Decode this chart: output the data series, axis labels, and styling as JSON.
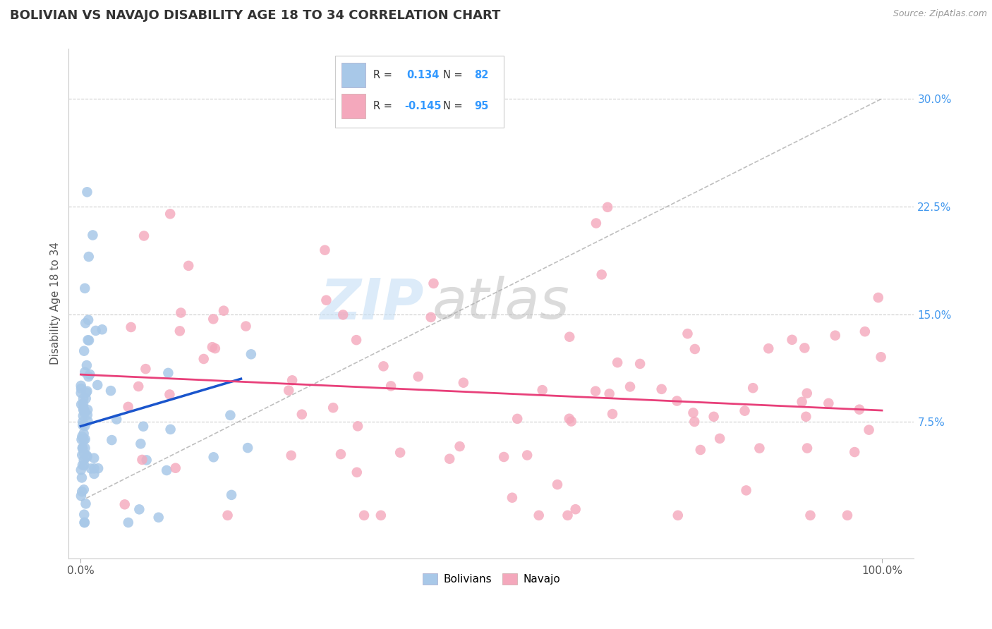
{
  "title": "BOLIVIAN VS NAVAJO DISABILITY AGE 18 TO 34 CORRELATION CHART",
  "source_text": "Source: ZipAtlas.com",
  "ylabel": "Disability Age 18 to 34",
  "bolivian_R": 0.134,
  "bolivian_N": 82,
  "navajo_R": -0.145,
  "navajo_N": 95,
  "bolivian_color": "#a8c8e8",
  "navajo_color": "#f4a8bc",
  "bolivian_line_color": "#1a55cc",
  "navajo_line_color": "#e8407a",
  "diagonal_line_color": "#aaaaaa",
  "grid_color": "#cccccc",
  "background_color": "#ffffff",
  "title_color": "#333333",
  "source_color": "#999999",
  "ylabel_color": "#555555",
  "ytick_color": "#4499ee",
  "xtick_color": "#555555",
  "legend_text_color": "#333333",
  "legend_value_color": "#3399ff",
  "xlim": [
    -0.015,
    1.04
  ],
  "ylim": [
    -0.02,
    0.335
  ],
  "yticks": [
    0.075,
    0.15,
    0.225,
    0.3
  ],
  "ytick_labels": [
    "7.5%",
    "15.0%",
    "22.5%",
    "30.0%"
  ],
  "xtick_labels": [
    "0.0%",
    "100.0%"
  ],
  "watermark_zip_color": "#c5dff5",
  "watermark_atlas_color": "#b8b8b8"
}
